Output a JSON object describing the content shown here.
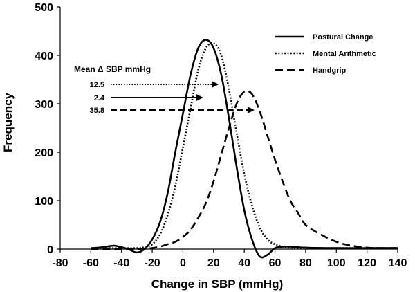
{
  "chart_data": {
    "type": "line",
    "title": "",
    "xlabel": "Change in SBP (mmHg)",
    "ylabel": "Frequency",
    "xlim": [
      -80,
      140
    ],
    "ylim": [
      0,
      500
    ],
    "xticks": [
      -80,
      -60,
      -40,
      -20,
      0,
      20,
      40,
      60,
      80,
      100,
      120,
      140
    ],
    "yticks": [
      0,
      100,
      200,
      300,
      400,
      500
    ],
    "grid": false,
    "legend_position": "top-right",
    "series": [
      {
        "name": "Postural Change",
        "style": "solid",
        "x": [
          -60,
          -55,
          -50,
          -45,
          -40,
          -35,
          -30,
          -25,
          -20,
          -15,
          -10,
          -5,
          0,
          5,
          10,
          15,
          20,
          25,
          30,
          35,
          40,
          45,
          50,
          55,
          60,
          65,
          70,
          80,
          100,
          120,
          140
        ],
        "y": [
          2,
          3,
          5,
          7,
          4,
          -1,
          -7,
          0,
          20,
          55,
          115,
          200,
          280,
          360,
          415,
          432,
          415,
          360,
          270,
          170,
          80,
          20,
          -15,
          -12,
          2,
          5,
          5,
          3,
          2,
          2,
          2
        ]
      },
      {
        "name": "Mental Arithmetic",
        "style": "dotted",
        "x": [
          -60,
          -50,
          -40,
          -30,
          -25,
          -20,
          -15,
          -10,
          -5,
          0,
          5,
          10,
          15,
          20,
          25,
          30,
          35,
          40,
          45,
          50,
          55,
          60,
          65,
          70,
          80,
          100,
          120,
          140
        ],
        "y": [
          2,
          2,
          2,
          2,
          4,
          10,
          30,
          70,
          130,
          210,
          290,
          370,
          415,
          425,
          400,
          330,
          240,
          155,
          90,
          45,
          20,
          10,
          5,
          3,
          2,
          2,
          2,
          2
        ]
      },
      {
        "name": "Handgrip",
        "style": "dashed",
        "x": [
          -60,
          -40,
          -30,
          -25,
          -20,
          -15,
          -10,
          -5,
          0,
          5,
          10,
          15,
          20,
          25,
          30,
          35,
          40,
          45,
          50,
          55,
          60,
          65,
          70,
          75,
          80,
          90,
          100,
          110,
          120,
          130,
          140
        ],
        "y": [
          0,
          0,
          0,
          1,
          2,
          5,
          10,
          15,
          25,
          40,
          65,
          95,
          140,
          195,
          250,
          300,
          325,
          320,
          285,
          235,
          185,
          140,
          100,
          75,
          50,
          30,
          15,
          7,
          3,
          2,
          2
        ]
      }
    ],
    "annotation": {
      "title": "Mean Δ SBP mmHg",
      "items": [
        {
          "label": "12.5",
          "series": "Mental Arithmetic",
          "style": "dotted",
          "x": 12.5,
          "y": 330
        },
        {
          "label": "2.4",
          "series": "Postural Change",
          "style": "solid",
          "x": 2.4,
          "y": 305
        },
        {
          "label": "35.8",
          "series": "Handgrip",
          "style": "dashed",
          "x": 35.8,
          "y": 280
        }
      ]
    }
  }
}
